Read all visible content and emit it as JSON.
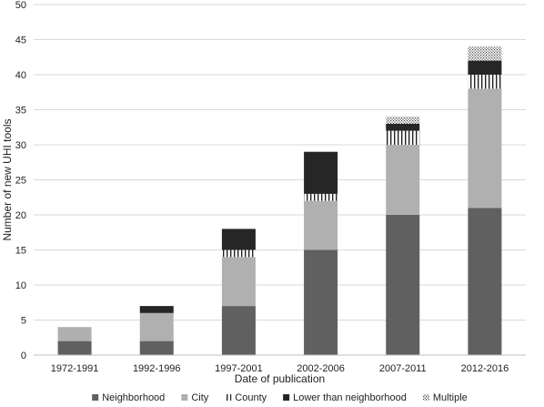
{
  "chart_data": {
    "type": "bar",
    "stacked": true,
    "title": "",
    "xlabel": "Date of publication",
    "ylabel": "Number of new UHI tools",
    "ylim": [
      0,
      50
    ],
    "yticks": [
      "0",
      "5",
      "10",
      "15",
      "20",
      "25",
      "30",
      "35",
      "40",
      "45",
      "50"
    ],
    "grid": true,
    "legend_position": "bottom",
    "categories": [
      "1972-1991",
      "1992-1996",
      "1997-2001",
      "2002-2006",
      "2007-2011",
      "2012-2016"
    ],
    "series": [
      {
        "name": "Neighborhood",
        "color": "#606060",
        "pattern": "solid",
        "values": [
          2,
          2,
          7,
          15,
          20,
          21
        ]
      },
      {
        "name": "City",
        "color": "#b0b0b0",
        "pattern": "solid",
        "values": [
          2,
          4,
          7,
          7,
          10,
          17
        ]
      },
      {
        "name": "County",
        "color": "#222222",
        "pattern": "vertical-lines",
        "values": [
          0,
          0,
          1,
          1,
          2,
          2
        ]
      },
      {
        "name": "Lower than neighborhood",
        "color": "#262626",
        "pattern": "solid",
        "values": [
          0,
          1,
          3,
          6,
          1,
          2
        ]
      },
      {
        "name": "Multiple",
        "color": "#444444",
        "pattern": "dots",
        "values": [
          0,
          0,
          0,
          0,
          1,
          2
        ]
      }
    ]
  }
}
